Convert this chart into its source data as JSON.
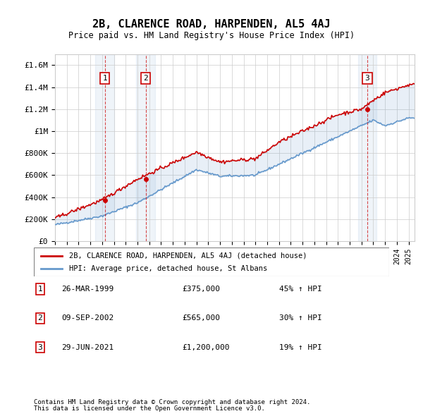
{
  "title": "2B, CLARENCE ROAD, HARPENDEN, AL5 4AJ",
  "subtitle": "Price paid vs. HM Land Registry's House Price Index (HPI)",
  "ylabel_ticks": [
    "£0",
    "£200K",
    "£400K",
    "£600K",
    "£800K",
    "£1M",
    "£1.2M",
    "£1.4M",
    "£1.6M"
  ],
  "ytick_values": [
    0,
    200000,
    400000,
    600000,
    800000,
    1000000,
    1200000,
    1400000,
    1600000
  ],
  "ylim": [
    0,
    1700000
  ],
  "xlim_start": 1995.0,
  "xlim_end": 2025.5,
  "transactions": [
    {
      "num": 1,
      "year": 1999.23,
      "price": 375000,
      "label": "26-MAR-1999",
      "amount": "£375,000",
      "pct": "45% ↑ HPI"
    },
    {
      "num": 2,
      "year": 2002.69,
      "price": 565000,
      "label": "09-SEP-2002",
      "amount": "£565,000",
      "pct": "30% ↑ HPI"
    },
    {
      "num": 3,
      "year": 2021.49,
      "price": 1200000,
      "label": "29-JUN-2021",
      "amount": "£1,200,000",
      "pct": "19% ↑ HPI"
    }
  ],
  "legend_property": "2B, CLARENCE ROAD, HARPENDEN, AL5 4AJ (detached house)",
  "legend_hpi": "HPI: Average price, detached house, St Albans",
  "footnote1": "Contains HM Land Registry data © Crown copyright and database right 2024.",
  "footnote2": "This data is licensed under the Open Government Licence v3.0.",
  "red_color": "#cc0000",
  "blue_color": "#6699cc",
  "shaded_color": "#ddeeff",
  "background_color": "#ffffff",
  "grid_color": "#cccccc"
}
